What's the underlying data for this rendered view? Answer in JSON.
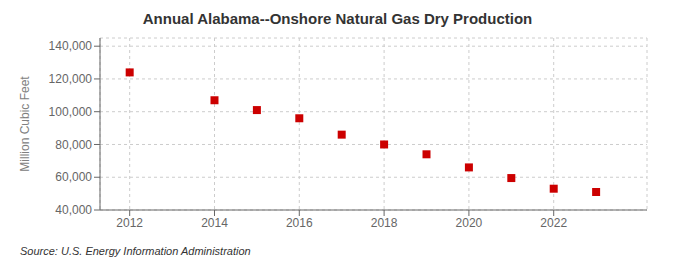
{
  "chart_data": {
    "type": "scatter",
    "title": "Annual Alabama--Onshore Natural Gas Dry Production",
    "y_label": "Million Cubic Feet",
    "annotation": "Source: U.S. Energy Information Administration",
    "x": [
      2012,
      2014,
      2015,
      2016,
      2017,
      2018,
      2019,
      2020,
      2021,
      2022,
      2023
    ],
    "values": [
      124000,
      107000,
      101000,
      96000,
      86000,
      80000,
      74000,
      66000,
      59500,
      53000,
      51000
    ],
    "color": "#cc0000",
    "marker": "square",
    "xlim": [
      2011.3,
      2024.2
    ],
    "ylim": [
      40000,
      145000
    ],
    "xticks": [
      2012,
      2014,
      2016,
      2018,
      2020,
      2022
    ],
    "yticks": [
      {
        "value": 40000,
        "label": "40,000"
      },
      {
        "value": 60000,
        "label": "60,000"
      },
      {
        "value": 80000,
        "label": "80,000"
      },
      {
        "value": 100000,
        "label": "100,000"
      },
      {
        "value": 120000,
        "label": "120,000"
      },
      {
        "value": 140000,
        "label": "140,000"
      }
    ],
    "grid": true
  }
}
